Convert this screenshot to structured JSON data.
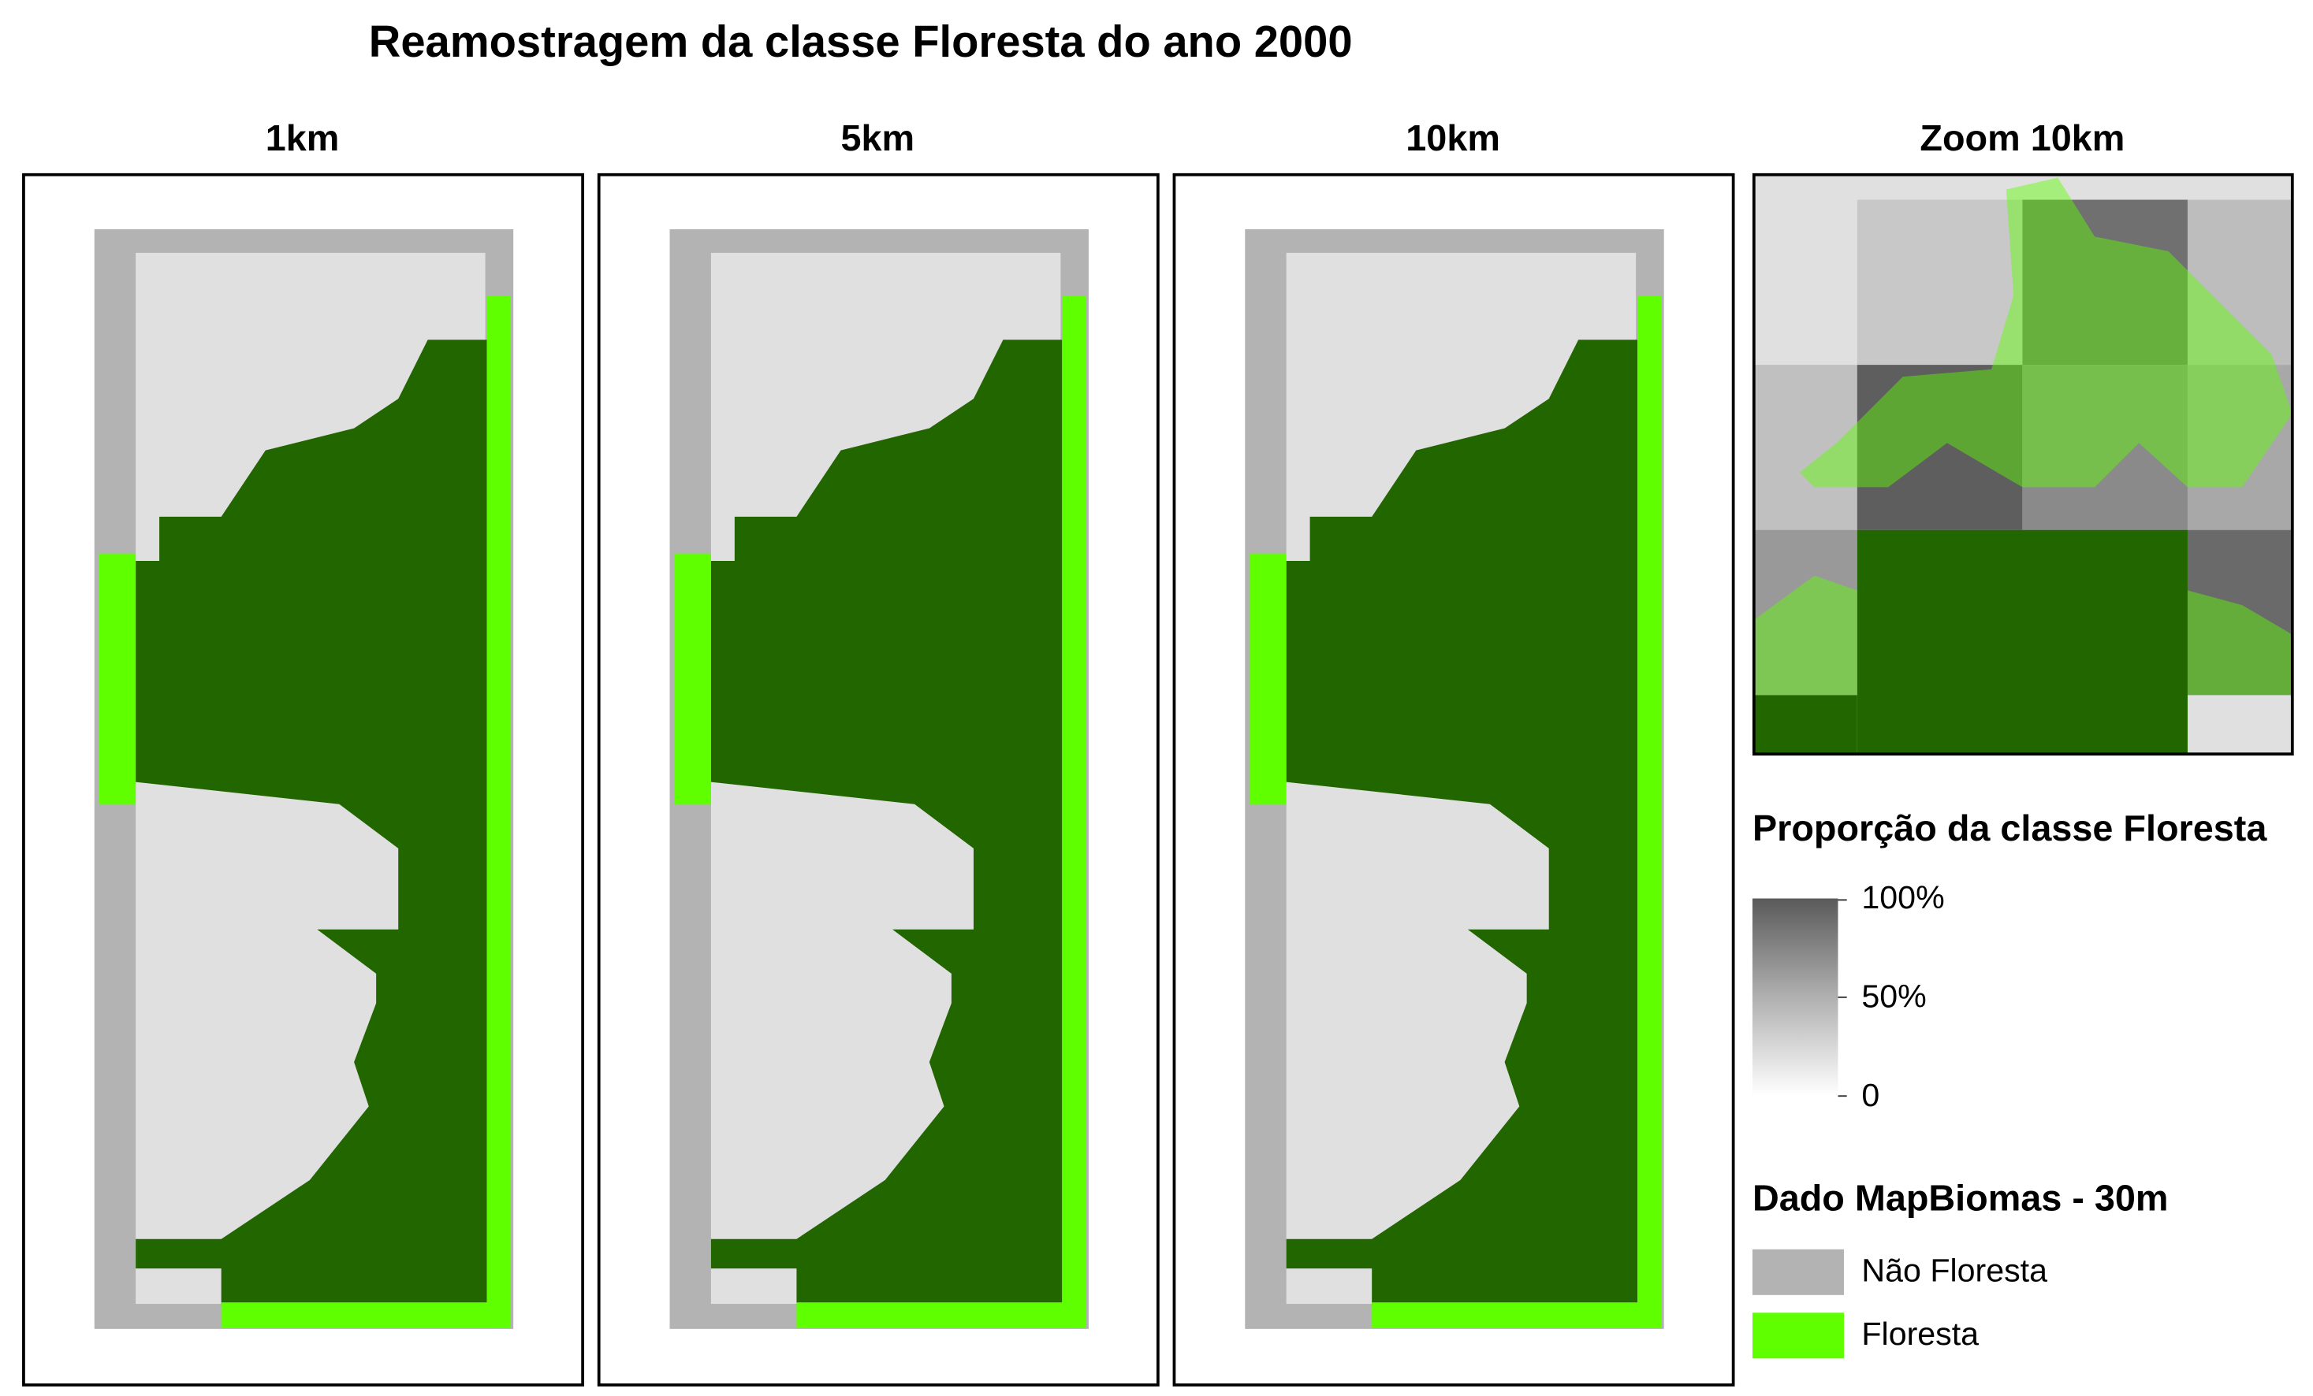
{
  "title": "Reamostragem da classe Floresta do ano 2000",
  "panels": [
    {
      "title": "1km"
    },
    {
      "title": "5km"
    },
    {
      "title": "10km"
    },
    {
      "title": "Zoom 10km"
    }
  ],
  "legend_proportion": {
    "title": "Proporção da classe Floresta",
    "ticks": [
      "100%",
      "50%",
      "0"
    ]
  },
  "legend_mapbiomas": {
    "title": "Dado MapBiomas - 30m",
    "items": [
      "Não Floresta",
      "Floresta"
    ]
  }
}
